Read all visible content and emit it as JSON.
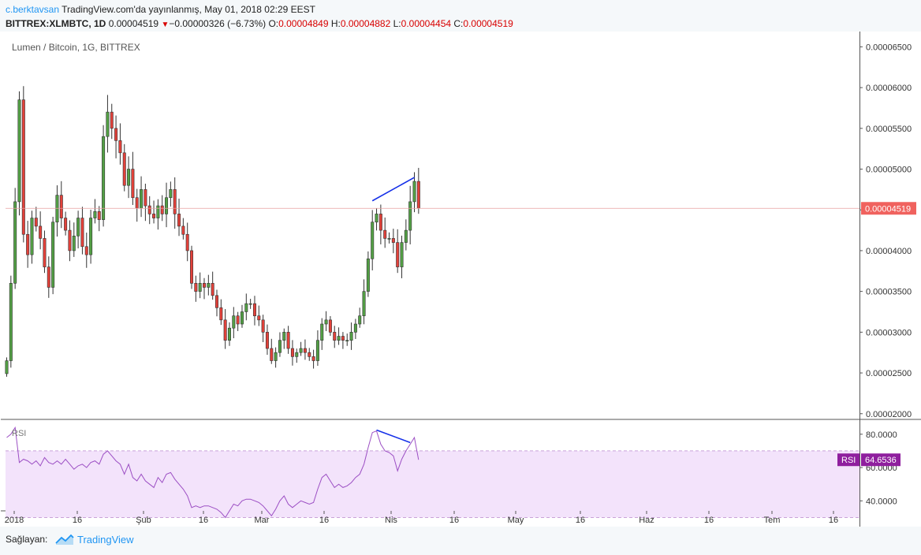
{
  "header": {
    "author": "c.berktavsan",
    "published": "TradingView.com'da yayınlanmış, May 01, 2018 02:29 EEST",
    "symbol": "BITTREX:XLMBTC, 1D",
    "last": "0.00004519",
    "change": "−0.00000326 (−6.73%)",
    "o_label": "O:",
    "o_value": "0.00004849",
    "h_label": "H:",
    "h_value": "0.00004882",
    "l_label": "L:",
    "l_value": "0.00004454",
    "c_label": "C:",
    "c_value": "0.00004519"
  },
  "footer": {
    "label": "Sağlayan:",
    "brand": "TradingView",
    "brand_icon": "tradingview-logo-icon"
  },
  "colors": {
    "up": "#6ba583",
    "upBody": "#53a045",
    "down": "#d75442",
    "downBody": "#e3413a",
    "rsi": "#9c4fc4",
    "rsiBand": "#f3e3fb",
    "divergence": "#1530e8",
    "priceTag": "#f0625e",
    "rsiTag": "#8f1f9e"
  },
  "chart_data": [
    {
      "type": "candlestick",
      "title": "Lumen / Bitcoin, 1G, BITTREX",
      "y_axis_ticks": [
        "0.00006500",
        "0.00006000",
        "0.00005500",
        "0.00005000",
        "0.00004500",
        "0.00004000",
        "0.00003500",
        "0.00003000",
        "0.00002500",
        "0.00002000"
      ],
      "y_range": [
        1.93e-05,
        6.62e-05
      ],
      "x_axis_ticks": [
        "2018",
        "16",
        "Şub",
        "16",
        "Mar",
        "16",
        "Nis",
        "16",
        "May",
        "16",
        "Haz",
        "16",
        "Tem",
        "16"
      ],
      "current_price_label": "0.00004519",
      "current_price": 4.519e-05,
      "bars_start_date": "2018-01-01",
      "close_series": [
        2.65e-05,
        3.6e-05,
        4.6e-05,
        5.85e-05,
        4.2e-05,
        3.95e-05,
        4.4e-05,
        4.3e-05,
        4.15e-05,
        3.8e-05,
        3.55e-05,
        4.35e-05,
        4.68e-05,
        4.4e-05,
        4.25e-05,
        4e-05,
        4.18e-05,
        4.4e-05,
        4.05e-05,
        3.95e-05,
        4.4e-05,
        4.48e-05,
        4.38e-05,
        5.4e-05,
        5.7e-05,
        5.5e-05,
        5.35e-05,
        5.2e-05,
        4.8e-05,
        5e-05,
        4.65e-05,
        4.52e-05,
        4.75e-05,
        4.55e-05,
        4.45e-05,
        4.4e-05,
        4.55e-05,
        4.45e-05,
        4.65e-05,
        4.75e-05,
        4.45e-05,
        4.3e-05,
        4.2e-05,
        4e-05,
        3.6e-05,
        3.5e-05,
        3.6e-05,
        3.55e-05,
        3.6e-05,
        3.45e-05,
        3.3e-05,
        3.15e-05,
        2.9e-05,
        3.05e-05,
        3.2e-05,
        3.1e-05,
        3.25e-05,
        3.35e-05,
        3.35e-05,
        3.2e-05,
        3.15e-05,
        3e-05,
        2.8e-05,
        2.65e-05,
        2.75e-05,
        2.9e-05,
        3e-05,
        2.8e-05,
        2.7e-05,
        2.75e-05,
        2.8e-05,
        2.75e-05,
        2.7e-05,
        2.65e-05,
        2.9e-05,
        3.1e-05,
        3.15e-05,
        3e-05,
        2.9e-05,
        2.95e-05,
        2.9e-05,
        2.9e-05,
        3e-05,
        3.1e-05,
        3.2e-05,
        3.5e-05,
        3.9e-05,
        4.35e-05,
        4.45e-05,
        4.25e-05,
        4.15e-05,
        4.15e-05,
        4.1e-05,
        3.8e-05,
        4.1e-05,
        4.25e-05,
        4.6e-05,
        4.85e-05,
        4.52e-05
      ]
    },
    {
      "type": "line",
      "title": "RSI",
      "y_axis_ticks": [
        "80.0000",
        "60.0000",
        "40.0000"
      ],
      "y_range": [
        34,
        87
      ],
      "band": [
        30,
        70
      ],
      "current_label": "RSI",
      "current_value": "64.6536",
      "series": [
        {
          "values": [
            78,
            80,
            84,
            63,
            65,
            64,
            62,
            64,
            61,
            66,
            63,
            62,
            64,
            62,
            65,
            62,
            59,
            61,
            62,
            60,
            63,
            64,
            62,
            68,
            70,
            67,
            64,
            62,
            56,
            62,
            54,
            52,
            56,
            52,
            50,
            48,
            54,
            51,
            56,
            57,
            53,
            50,
            47,
            43,
            36,
            37,
            36,
            37,
            37,
            36,
            35,
            33,
            30,
            34,
            38,
            37,
            40,
            41,
            41,
            40,
            39,
            37,
            34,
            31,
            35,
            40,
            43,
            38,
            36,
            38,
            40,
            39,
            38,
            39,
            47,
            54,
            56,
            52,
            48,
            50,
            48,
            49,
            51,
            54,
            56,
            62,
            72,
            81,
            82,
            74,
            70,
            69,
            67,
            58,
            65,
            70,
            74,
            78,
            64.65
          ]
        }
      ]
    }
  ]
}
